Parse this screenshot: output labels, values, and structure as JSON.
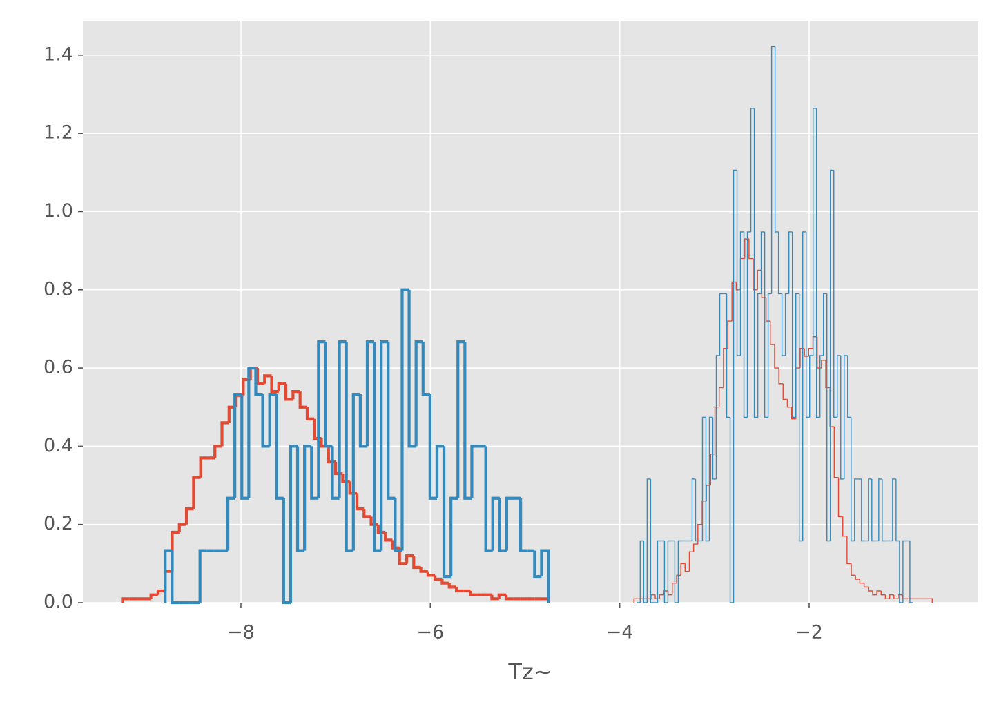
{
  "chart_data": {
    "type": "histogram",
    "x_label": "Tz~",
    "xlim": [
      -9.669,
      -0.214
    ],
    "ylim": [
      0,
      1.488
    ],
    "xticks": [
      {
        "value": -8,
        "label": "−8"
      },
      {
        "value": -6,
        "label": "−6"
      },
      {
        "value": -4,
        "label": "−4"
      },
      {
        "value": -2,
        "label": "−2"
      }
    ],
    "yticks": [
      {
        "value": 0,
        "label": "0.0"
      },
      0.2,
      0.4,
      0.6,
      0.8,
      {
        "value": 1,
        "label": "1.0"
      },
      1.2,
      1.4
    ],
    "grid": true,
    "series": [
      {
        "color": "#E24A33",
        "linewidth": 3,
        "bins": [
          -9.25,
          -9.175,
          -9.1,
          -9.025,
          -8.95,
          -8.875,
          -8.8,
          -8.725,
          -8.65,
          -8.575,
          -8.5,
          -8.425,
          -8.35,
          -8.275,
          -8.2,
          -8.125,
          -8.05,
          -7.975,
          -7.9,
          -7.825,
          -7.75,
          -7.675,
          -7.6,
          -7.525,
          -7.45,
          -7.375,
          -7.3,
          -7.225,
          -7.15,
          -7.075,
          -7.0,
          -6.925,
          -6.85,
          -6.775,
          -6.7,
          -6.625,
          -6.55,
          -6.475,
          -6.4,
          -6.325,
          -6.25,
          -6.175,
          -6.1,
          -6.025,
          -5.95,
          -5.875,
          -5.8,
          -5.725,
          -5.65,
          -5.575,
          -5.5,
          -5.425,
          -5.35,
          -5.275,
          -5.2,
          -5.125,
          -5.05,
          -4.975,
          -4.9,
          -4.825,
          -4.75
        ],
        "values": [
          0.01,
          0.01,
          0.01,
          0.01,
          0.02,
          0.03,
          0.08,
          0.18,
          0.2,
          0.24,
          0.32,
          0.37,
          0.37,
          0.4,
          0.46,
          0.5,
          0.53,
          0.57,
          0.6,
          0.56,
          0.58,
          0.54,
          0.56,
          0.52,
          0.54,
          0.5,
          0.47,
          0.42,
          0.4,
          0.36,
          0.33,
          0.31,
          0.28,
          0.24,
          0.22,
          0.2,
          0.18,
          0.16,
          0.14,
          0.1,
          0.12,
          0.09,
          0.08,
          0.07,
          0.06,
          0.05,
          0.04,
          0.03,
          0.03,
          0.02,
          0.02,
          0.02,
          0.01,
          0.02,
          0.01,
          0.01,
          0.01,
          0.01,
          0.01,
          0.01
        ]
      },
      {
        "color": "#348ABD",
        "linewidth": 3,
        "bins": [
          -8.8,
          -8.7264,
          -8.6528,
          -8.5792,
          -8.5056,
          -8.432,
          -8.3584,
          -8.2848,
          -8.2112,
          -8.1376,
          -8.064,
          -7.9904,
          -7.9168,
          -7.8432,
          -7.7696,
          -7.696,
          -7.6224,
          -7.5488,
          -7.4752,
          -7.4016,
          -7.328,
          -7.2544,
          -7.1808,
          -7.1072,
          -7.0336,
          -6.96,
          -6.8864,
          -6.8128,
          -6.7392,
          -6.6656,
          -6.592,
          -6.5184,
          -6.4448,
          -6.3712,
          -6.2976,
          -6.224,
          -6.1504,
          -6.0768,
          -6.0032,
          -5.9296,
          -5.856,
          -5.7824,
          -5.7088,
          -5.6352,
          -5.5616,
          -5.488,
          -5.4144,
          -5.3408,
          -5.2672,
          -5.1936,
          -5.12,
          -5.0464,
          -4.9728,
          -4.8992,
          -4.8256,
          -4.752
        ],
        "values": [
          0.133,
          0,
          0,
          0,
          0,
          0.133,
          0.133,
          0.133,
          0.133,
          0.267,
          0.533,
          0.267,
          0.6,
          0.533,
          0.4,
          0.533,
          0.267,
          0,
          0.4,
          0.133,
          0.4,
          0.267,
          0.667,
          0.4,
          0.267,
          0.667,
          0.133,
          0.533,
          0.4,
          0.667,
          0.133,
          0.667,
          0.267,
          0.133,
          0.8,
          0.4,
          0.667,
          0.533,
          0.267,
          0.4,
          0.067,
          0.267,
          0.667,
          0.267,
          0.4,
          0.4,
          0.133,
          0.267,
          0.133,
          0.267,
          0.267,
          0.133,
          0.133,
          0.067,
          0.133
        ]
      },
      {
        "color": "#E24A33",
        "linewidth": 1,
        "bins": [
          -3.85,
          -3.805,
          -3.76,
          -3.715,
          -3.67,
          -3.625,
          -3.58,
          -3.535,
          -3.49,
          -3.445,
          -3.4,
          -3.355,
          -3.31,
          -3.265,
          -3.22,
          -3.175,
          -3.13,
          -3.085,
          -3.04,
          -2.995,
          -2.95,
          -2.905,
          -2.86,
          -2.815,
          -2.77,
          -2.725,
          -2.68,
          -2.635,
          -2.59,
          -2.545,
          -2.5,
          -2.455,
          -2.41,
          -2.365,
          -2.32,
          -2.275,
          -2.23,
          -2.185,
          -2.14,
          -2.095,
          -2.05,
          -2.005,
          -1.96,
          -1.915,
          -1.87,
          -1.825,
          -1.78,
          -1.735,
          -1.69,
          -1.645,
          -1.6,
          -1.555,
          -1.51,
          -1.465,
          -1.42,
          -1.375,
          -1.33,
          -1.285,
          -1.24,
          -1.195,
          -1.15,
          -1.105,
          -1.06,
          -1.015,
          -0.97,
          -0.925,
          -0.88,
          -0.835,
          -0.79,
          -0.745,
          -0.7
        ],
        "values": [
          0.01,
          0.01,
          0.01,
          0.01,
          0.02,
          0.01,
          0.02,
          0.03,
          0.02,
          0.05,
          0.07,
          0.1,
          0.08,
          0.13,
          0.15,
          0.2,
          0.26,
          0.3,
          0.38,
          0.5,
          0.55,
          0.65,
          0.72,
          0.82,
          0.8,
          0.88,
          0.93,
          0.88,
          0.8,
          0.85,
          0.78,
          0.72,
          0.66,
          0.6,
          0.56,
          0.52,
          0.5,
          0.47,
          0.6,
          0.65,
          0.63,
          0.65,
          0.68,
          0.6,
          0.62,
          0.55,
          0.45,
          0.32,
          0.22,
          0.17,
          0.1,
          0.07,
          0.06,
          0.05,
          0.04,
          0.03,
          0.02,
          0.03,
          0.02,
          0.01,
          0.02,
          0.01,
          0.02,
          0.01,
          0.01,
          0.01,
          0.01,
          0.01,
          0.01,
          0.01
        ]
      },
      {
        "color": "#348ABD",
        "linewidth": 1,
        "bins": [
          -3.82,
          -3.7835,
          -3.747,
          -3.7105,
          -3.674,
          -3.6375,
          -3.601,
          -3.5645,
          -3.528,
          -3.4915,
          -3.455,
          -3.4185,
          -3.382,
          -3.3455,
          -3.309,
          -3.2725,
          -3.236,
          -3.1995,
          -3.163,
          -3.1265,
          -3.09,
          -3.0535,
          -3.017,
          -2.9805,
          -2.944,
          -2.9075,
          -2.871,
          -2.8345,
          -2.798,
          -2.7615,
          -2.725,
          -2.6885,
          -2.652,
          -2.6155,
          -2.579,
          -2.5425,
          -2.506,
          -2.4695,
          -2.433,
          -2.3965,
          -2.36,
          -2.3235,
          -2.287,
          -2.2505,
          -2.214,
          -2.1775,
          -2.141,
          -2.1045,
          -2.068,
          -2.0315,
          -1.995,
          -1.9585,
          -1.922,
          -1.8855,
          -1.849,
          -1.8125,
          -1.776,
          -1.7395,
          -1.703,
          -1.6665,
          -1.63,
          -1.5935,
          -1.557,
          -1.5205,
          -1.484,
          -1.4475,
          -1.411,
          -1.3745,
          -1.338,
          -1.3015,
          -1.265,
          -1.2285,
          -1.192,
          -1.1555,
          -1.119,
          -1.0825,
          -1.046,
          -1.0095,
          -0.973,
          -0.9365,
          -0.9
        ],
        "values": [
          0,
          0.158,
          0,
          0.316,
          0,
          0,
          0.158,
          0.158,
          0,
          0.158,
          0.158,
          0,
          0.158,
          0.158,
          0.158,
          0.158,
          0.316,
          0.158,
          0.158,
          0.474,
          0.158,
          0.474,
          0.316,
          0.632,
          0.79,
          0.79,
          0.474,
          0,
          1.106,
          0.632,
          0.948,
          0.474,
          0.948,
          1.264,
          0.474,
          0.79,
          0.948,
          0.474,
          0.79,
          1.422,
          0.948,
          0.79,
          0.632,
          0.79,
          0.948,
          0.474,
          0.79,
          0.158,
          0.948,
          0.474,
          0.632,
          1.264,
          0.474,
          0.632,
          0.79,
          0.158,
          1.106,
          0.474,
          0.632,
          0.316,
          0.632,
          0.474,
          0.158,
          0.316,
          0.316,
          0.158,
          0.158,
          0.316,
          0.158,
          0.158,
          0.316,
          0.158,
          0.158,
          0.158,
          0.316,
          0.158,
          0,
          0.158,
          0.158,
          0
        ]
      }
    ]
  }
}
